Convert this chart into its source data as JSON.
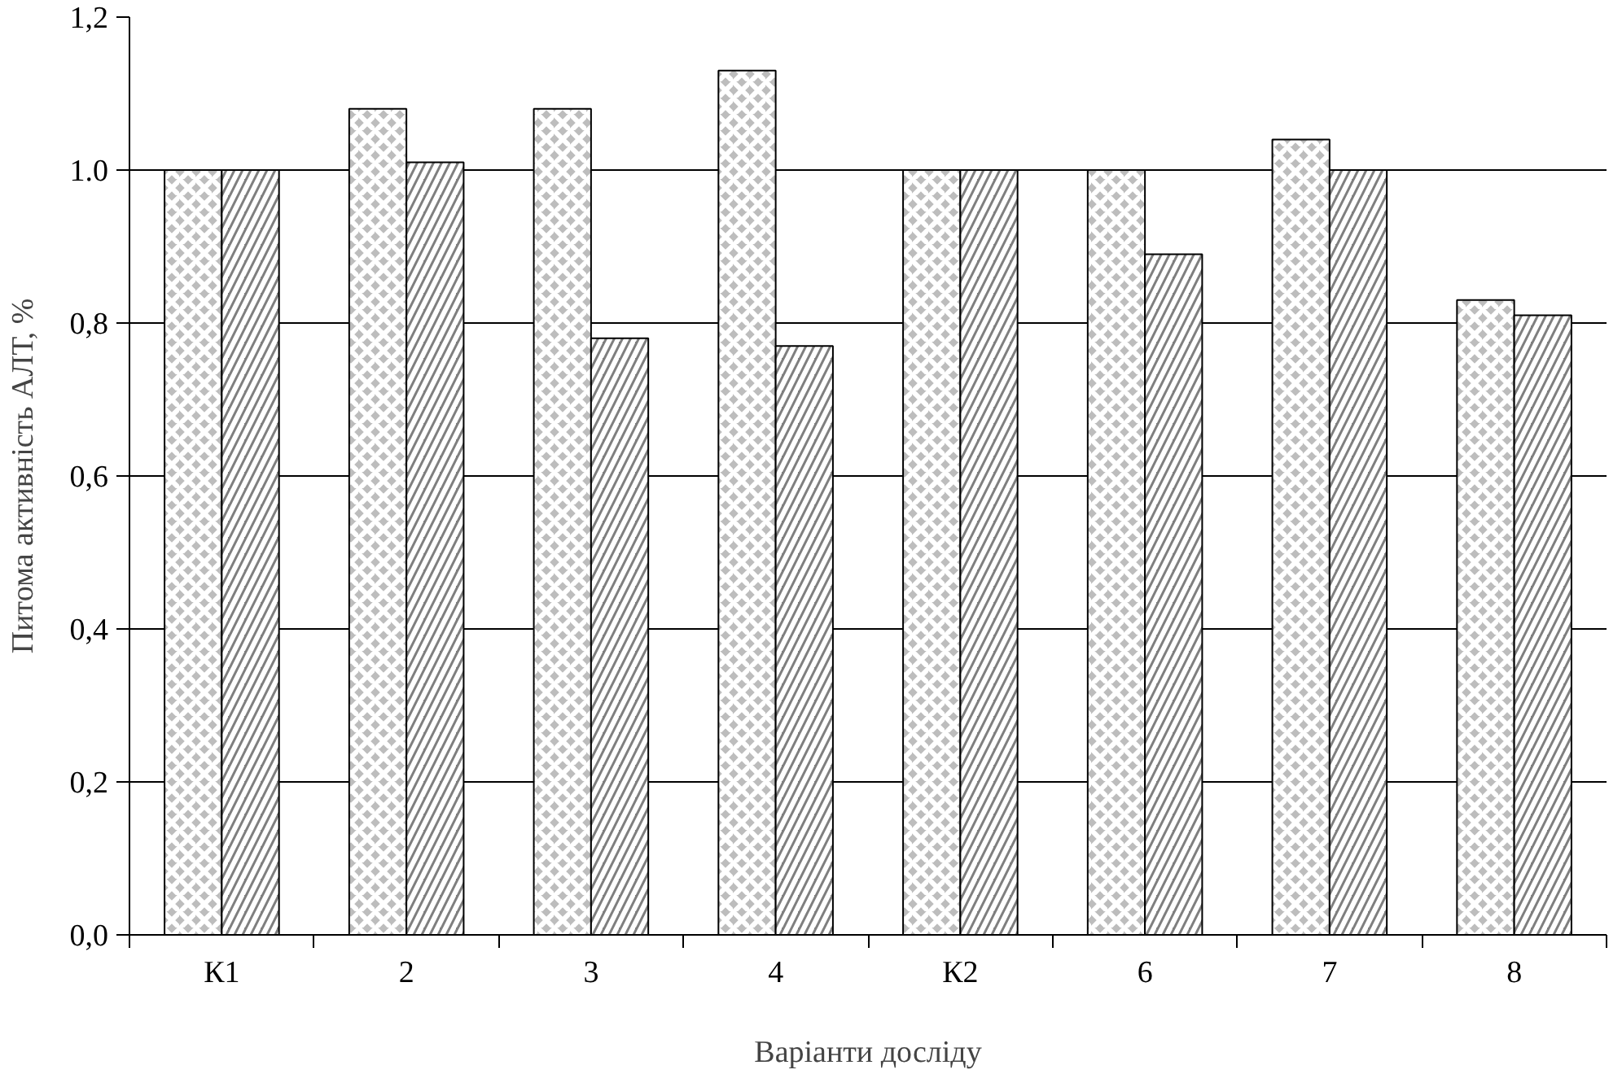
{
  "chart_data": {
    "type": "bar",
    "xlabel": "Варіанти досліду",
    "ylabel": "Питома активність АЛТ, %",
    "categories": [
      "К1",
      "2",
      "3",
      "4",
      "К2",
      "6",
      "7",
      "8"
    ],
    "series": [
      {
        "color": "#bdbdbd",
        "values": [
          1.0,
          1.08,
          1.08,
          1.13,
          1.0,
          1.0,
          1.04,
          0.83
        ]
      },
      {
        "color": "#7f7f7f",
        "values": [
          1.0,
          1.01,
          0.78,
          0.77,
          1.0,
          0.89,
          1.0,
          0.81
        ]
      }
    ],
    "ylim": [
      0,
      1.2
    ],
    "yticks": [
      {
        "value": 0,
        "label": "0,0"
      },
      {
        "value": 0.2,
        "label": "0,2"
      },
      {
        "value": 0.4,
        "label": "0,4"
      },
      {
        "value": 0.6,
        "label": "0,6"
      },
      {
        "value": 0.8,
        "label": "0,8"
      },
      {
        "value": 1.0,
        "label": "1.0"
      },
      {
        "value": 1.2,
        "label": "1,2"
      }
    ],
    "grid": "y"
  }
}
